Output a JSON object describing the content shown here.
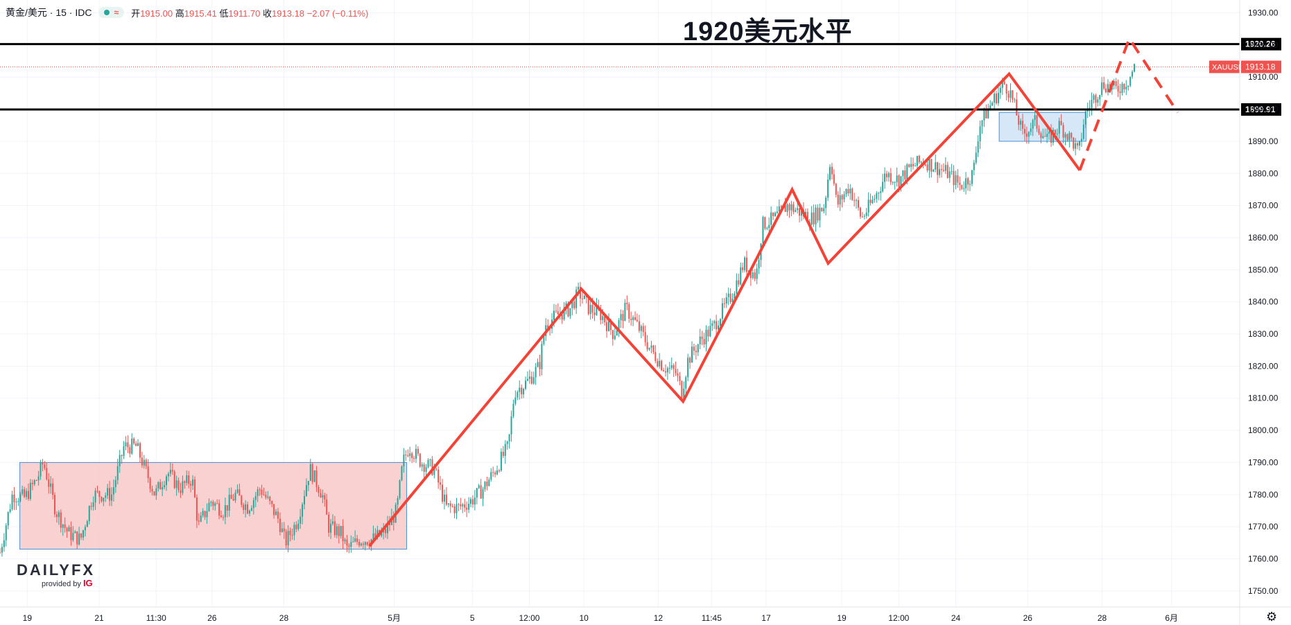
{
  "header": {
    "symbol": "黄金/美元 · 15 · IDC",
    "open_label": "开",
    "open": "1915.00",
    "high_label": "高",
    "high": "1915.41",
    "low_label": "低",
    "low": "1911.70",
    "close_label": "收",
    "close": "1913.18",
    "change": "−2.07 (−0.11%)",
    "wave_icon": "≈"
  },
  "logo": {
    "text": "DAILYFX",
    "sub": "provided by",
    "ig": "IG"
  },
  "chart_data": {
    "type": "candlestick",
    "title": "1920美元水平",
    "ylim": [
      1745,
      1934
    ],
    "y_ticks": [
      1750,
      1760,
      1770,
      1780,
      1790,
      1800,
      1810,
      1820,
      1830,
      1840,
      1850,
      1860,
      1870,
      1880,
      1890,
      1900,
      1910,
      1920,
      1930
    ],
    "x_ticks": [
      "19",
      "21",
      "11:30",
      "26",
      "28",
      "5月",
      "5",
      "12:00",
      "10",
      "12",
      "11:45",
      "17",
      "19",
      "12:00",
      "24",
      "26",
      "28",
      "6月"
    ],
    "x_tick_pos": [
      0.022,
      0.08,
      0.126,
      0.171,
      0.229,
      0.318,
      0.381,
      0.427,
      0.471,
      0.531,
      0.574,
      0.618,
      0.679,
      0.725,
      0.771,
      0.829,
      0.889,
      0.945
    ],
    "price_path": [
      [
        0,
        1762
      ],
      [
        0.01,
        1780
      ],
      [
        0.02,
        1779
      ],
      [
        0.03,
        1785
      ],
      [
        0.035,
        1790
      ],
      [
        0.045,
        1775
      ],
      [
        0.055,
        1768
      ],
      [
        0.065,
        1766
      ],
      [
        0.075,
        1780
      ],
      [
        0.09,
        1780
      ],
      [
        0.1,
        1795
      ],
      [
        0.11,
        1795
      ],
      [
        0.115,
        1790
      ],
      [
        0.125,
        1780
      ],
      [
        0.135,
        1787
      ],
      [
        0.145,
        1782
      ],
      [
        0.155,
        1785
      ],
      [
        0.16,
        1770
      ],
      [
        0.17,
        1778
      ],
      [
        0.18,
        1775
      ],
      [
        0.19,
        1780
      ],
      [
        0.2,
        1776
      ],
      [
        0.21,
        1782
      ],
      [
        0.225,
        1772
      ],
      [
        0.23,
        1765
      ],
      [
        0.24,
        1772
      ],
      [
        0.25,
        1788
      ],
      [
        0.26,
        1780
      ],
      [
        0.265,
        1770
      ],
      [
        0.275,
        1768
      ],
      [
        0.28,
        1763
      ],
      [
        0.29,
        1766
      ],
      [
        0.3,
        1766
      ],
      [
        0.31,
        1768
      ],
      [
        0.32,
        1775
      ],
      [
        0.325,
        1790
      ],
      [
        0.33,
        1795
      ],
      [
        0.34,
        1790
      ],
      [
        0.35,
        1788
      ],
      [
        0.355,
        1782
      ],
      [
        0.36,
        1776
      ],
      [
        0.37,
        1776
      ],
      [
        0.38,
        1778
      ],
      [
        0.39,
        1782
      ],
      [
        0.4,
        1788
      ],
      [
        0.41,
        1795
      ],
      [
        0.415,
        1812
      ],
      [
        0.425,
        1815
      ],
      [
        0.435,
        1820
      ],
      [
        0.44,
        1833
      ],
      [
        0.45,
        1836
      ],
      [
        0.46,
        1838
      ],
      [
        0.467,
        1843
      ],
      [
        0.475,
        1838
      ],
      [
        0.485,
        1836
      ],
      [
        0.495,
        1830
      ],
      [
        0.505,
        1838
      ],
      [
        0.515,
        1832
      ],
      [
        0.525,
        1825
      ],
      [
        0.535,
        1820
      ],
      [
        0.545,
        1818
      ],
      [
        0.55,
        1812
      ],
      [
        0.555,
        1822
      ],
      [
        0.565,
        1828
      ],
      [
        0.575,
        1832
      ],
      [
        0.59,
        1842
      ],
      [
        0.6,
        1852
      ],
      [
        0.61,
        1848
      ],
      [
        0.615,
        1864
      ],
      [
        0.625,
        1866
      ],
      [
        0.635,
        1870
      ],
      [
        0.645,
        1868
      ],
      [
        0.655,
        1866
      ],
      [
        0.665,
        1870
      ],
      [
        0.67,
        1885
      ],
      [
        0.675,
        1870
      ],
      [
        0.685,
        1876
      ],
      [
        0.695,
        1866
      ],
      [
        0.705,
        1872
      ],
      [
        0.715,
        1880
      ],
      [
        0.725,
        1878
      ],
      [
        0.735,
        1882
      ],
      [
        0.745,
        1884
      ],
      [
        0.755,
        1882
      ],
      [
        0.765,
        1880
      ],
      [
        0.775,
        1876
      ],
      [
        0.785,
        1880
      ],
      [
        0.79,
        1895
      ],
      [
        0.8,
        1902
      ],
      [
        0.81,
        1908
      ],
      [
        0.815,
        1905
      ],
      [
        0.825,
        1892
      ],
      [
        0.835,
        1896
      ],
      [
        0.845,
        1890
      ],
      [
        0.855,
        1895
      ],
      [
        0.865,
        1890
      ],
      [
        0.87,
        1886
      ],
      [
        0.875,
        1898
      ],
      [
        0.88,
        1902
      ],
      [
        0.89,
        1908
      ],
      [
        0.9,
        1906
      ],
      [
        0.91,
        1909
      ],
      [
        0.915,
        1913
      ]
    ],
    "levels": [
      {
        "value": 1920.26,
        "label": "1920.26"
      },
      {
        "value": 1899.91,
        "label": "1899.91"
      }
    ],
    "current": {
      "symbol": "XAUUSD",
      "value": 1913.18,
      "label": "1913.18"
    },
    "zones": [
      {
        "x0": 0.016,
        "x1": 0.328,
        "y0": 1763,
        "y1": 1790,
        "color": "#f8c9c9"
      },
      {
        "x0": 0.806,
        "x1": 0.876,
        "y0": 1890,
        "y1": 1899,
        "color": "#cfe3f7"
      }
    ],
    "trend": [
      [
        0.298,
        1764
      ],
      [
        0.469,
        1844
      ],
      [
        0.551,
        1809
      ],
      [
        0.639,
        1875
      ],
      [
        0.668,
        1852
      ],
      [
        0.814,
        1911
      ],
      [
        0.871,
        1881
      ]
    ],
    "trend_dashed": [
      [
        0.871,
        1881
      ],
      [
        0.911,
        1922
      ],
      [
        0.95,
        1899
      ]
    ],
    "colors": {
      "up": "#26a69a",
      "down": "#ef5350",
      "trend": "#f44336",
      "level": "#000000",
      "grid": "#f0f3fa"
    }
  }
}
